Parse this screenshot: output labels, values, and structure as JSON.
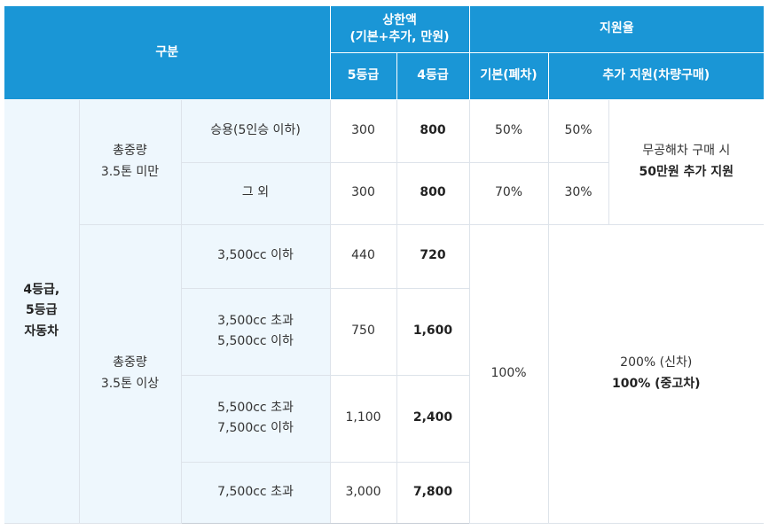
{
  "header": {
    "category": "구분",
    "cap_title": [
      "상한액",
      "(기본+추가, 만원)"
    ],
    "grade5": "5등급",
    "grade4": "4등급",
    "support_rate": "지원율",
    "basic": "기본(폐차)",
    "additional": "추가 지원(차량구매)"
  },
  "vehicle_group": [
    "4등급,",
    "5등급",
    "자동차"
  ],
  "under35": {
    "weight": [
      "총중량",
      "3.5톤 미만"
    ],
    "rows": [
      {
        "type": "승용(5인승 이하)",
        "g5": "300",
        "g4": "800",
        "basic": "50%",
        "add": "50%"
      },
      {
        "type": "그 외",
        "g5": "300",
        "g4": "800",
        "basic": "70%",
        "add": "30%"
      }
    ],
    "extra_note": [
      "무공해차 구매 시",
      "50만원 추가 지원"
    ]
  },
  "over35": {
    "weight": [
      "총중량",
      "3.5톤 이상"
    ],
    "rows": [
      {
        "type": [
          "3,500cc 이하"
        ],
        "g5": "440",
        "g4": "720"
      },
      {
        "type": [
          "3,500cc 초과",
          "5,500cc 이하"
        ],
        "g5": "750",
        "g4": "1,600"
      },
      {
        "type": [
          "5,500cc 초과",
          "7,500cc 이하"
        ],
        "g5": "1,100",
        "g4": "2,400"
      },
      {
        "type": [
          "7,500cc 초과"
        ],
        "g5": "3,000",
        "g4": "7,800"
      }
    ],
    "basic": "100%",
    "add": [
      "200% (신차)",
      "100% (중고차)"
    ]
  },
  "colors": {
    "header": "#1a96d6",
    "label_bg": "#eef7fd",
    "border": "#dde3ea"
  }
}
